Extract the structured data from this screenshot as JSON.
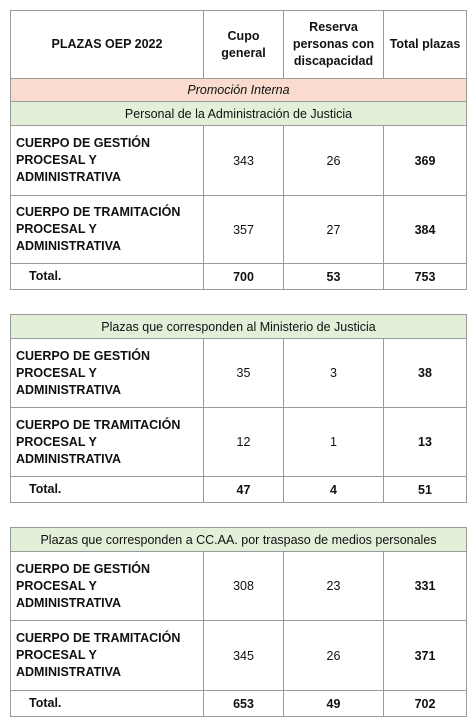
{
  "header": {
    "columns": [
      "PLAZAS OEP 2022",
      "Cupo general",
      "Reserva personas con discapacidad",
      "Total plazas"
    ]
  },
  "subtitle": "Promoción Interna",
  "sections": [
    {
      "title": "Personal de la Administración de Justicia",
      "rows": [
        {
          "label": "CUERPO DE GESTIÓN PROCESAL Y ADMINISTRATIVA",
          "values": [
            343,
            26,
            369
          ]
        },
        {
          "label": "CUERPO DE TRAMITACIÓN PROCESAL Y ADMINISTRATIVA",
          "values": [
            357,
            27,
            384
          ]
        }
      ],
      "total": {
        "label": "Total.",
        "values": [
          700,
          53,
          753
        ]
      }
    },
    {
      "title": "Plazas que corresponden al Ministerio de Justicia",
      "rows": [
        {
          "label": "CUERPO DE GESTIÓN PROCESAL Y ADMINISTRATIVA",
          "values": [
            35,
            3,
            38
          ]
        },
        {
          "label": "CUERPO DE TRAMITACIÓN PROCESAL Y ADMINISTRATIVA",
          "values": [
            12,
            1,
            13
          ]
        }
      ],
      "total": {
        "label": "Total.",
        "values": [
          47,
          4,
          51
        ]
      }
    },
    {
      "title": "Plazas que corresponden a CC.AA. por traspaso de medios personales",
      "rows": [
        {
          "label": "CUERPO DE GESTIÓN PROCESAL Y ADMINISTRATIVA",
          "values": [
            308,
            23,
            331
          ]
        },
        {
          "label": "CUERPO DE TRAMITACIÓN PROCESAL Y ADMINISTRATIVA",
          "values": [
            345,
            26,
            371
          ]
        }
      ],
      "total": {
        "label": "Total.",
        "values": [
          653,
          49,
          702
        ]
      }
    }
  ]
}
